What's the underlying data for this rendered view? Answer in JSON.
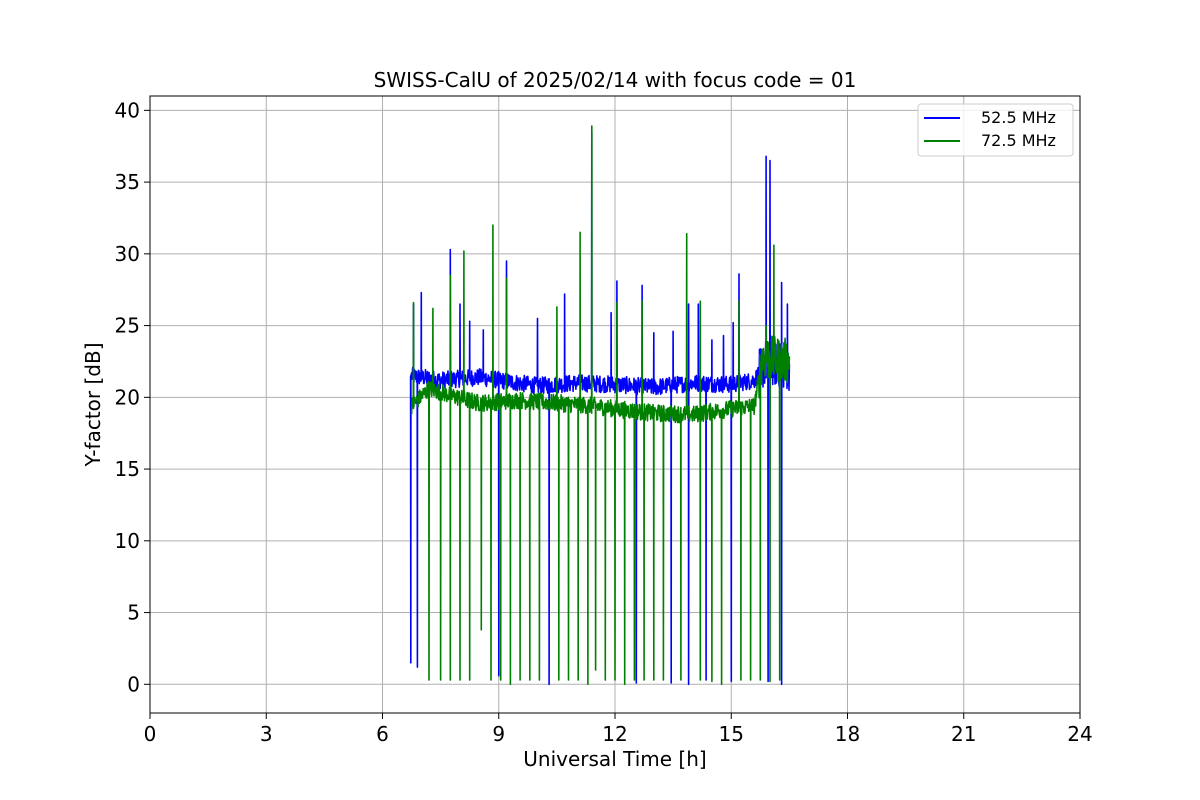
{
  "chart_data": {
    "type": "line",
    "title": "SWISS-CalU of 2025/02/14 with focus code = 01",
    "xlabel": "Universal Time [h]",
    "ylabel": "Y-factor [dB]",
    "xlim": [
      0,
      24
    ],
    "ylim": [
      -2,
      41
    ],
    "xticks": [
      0,
      3,
      6,
      9,
      12,
      15,
      18,
      21,
      24
    ],
    "yticks": [
      0,
      5,
      10,
      15,
      20,
      25,
      30,
      35,
      40
    ],
    "grid": true,
    "legend_position": "top-right",
    "series": [
      {
        "name": "52.5 MHz",
        "color": "#0000ff",
        "baseline": [
          [
            6.75,
            21.5
          ],
          [
            7.5,
            21.2
          ],
          [
            8.5,
            21.4
          ],
          [
            10.0,
            20.8
          ],
          [
            11.0,
            21.0
          ],
          [
            12.0,
            20.9
          ],
          [
            13.0,
            20.7
          ],
          [
            14.0,
            21.0
          ],
          [
            15.0,
            20.9
          ],
          [
            15.6,
            21.2
          ],
          [
            15.9,
            22.5
          ],
          [
            16.5,
            22.0
          ]
        ],
        "up_spikes": [
          [
            6.8,
            26.5
          ],
          [
            7.0,
            27.3
          ],
          [
            7.75,
            30.3
          ],
          [
            8.0,
            26.5
          ],
          [
            8.25,
            25.3
          ],
          [
            8.6,
            24.7
          ],
          [
            9.2,
            29.5
          ],
          [
            10.0,
            25.5
          ],
          [
            10.7,
            27.2
          ],
          [
            11.4,
            38.5
          ],
          [
            11.9,
            25.9
          ],
          [
            12.05,
            28.1
          ],
          [
            12.7,
            27.8
          ],
          [
            13.0,
            24.5
          ],
          [
            13.5,
            24.6
          ],
          [
            13.9,
            26.5
          ],
          [
            14.15,
            26.5
          ],
          [
            14.5,
            24.0
          ],
          [
            14.8,
            24.3
          ],
          [
            15.05,
            25.2
          ],
          [
            15.2,
            28.6
          ],
          [
            15.9,
            36.8
          ],
          [
            16.0,
            36.5
          ],
          [
            16.3,
            28.0
          ],
          [
            16.45,
            26.5
          ]
        ],
        "down_spikes": [
          [
            6.73,
            1.5
          ],
          [
            6.9,
            1.2
          ],
          [
            9.0,
            0.6
          ],
          [
            10.3,
            0.0
          ],
          [
            12.55,
            0.1
          ],
          [
            13.45,
            0.1
          ],
          [
            13.9,
            0.0
          ],
          [
            14.35,
            0.3
          ],
          [
            15.0,
            0.2
          ],
          [
            15.95,
            0.2
          ],
          [
            16.3,
            0.0
          ]
        ]
      },
      {
        "name": "72.5 MHz",
        "color": "#008000",
        "baseline": [
          [
            6.75,
            19.4
          ],
          [
            7.2,
            20.6
          ],
          [
            7.8,
            20.1
          ],
          [
            8.5,
            19.6
          ],
          [
            9.5,
            19.8
          ],
          [
            10.5,
            19.6
          ],
          [
            11.5,
            19.4
          ],
          [
            12.0,
            19.2
          ],
          [
            13.0,
            18.9
          ],
          [
            14.0,
            18.8
          ],
          [
            15.0,
            19.2
          ],
          [
            15.6,
            19.4
          ],
          [
            15.8,
            22.8
          ],
          [
            16.5,
            22.5
          ]
        ],
        "up_spikes": [
          [
            6.8,
            26.6
          ],
          [
            7.3,
            26.2
          ],
          [
            7.75,
            28.5
          ],
          [
            8.1,
            30.2
          ],
          [
            8.85,
            32.0
          ],
          [
            9.2,
            28.3
          ],
          [
            10.5,
            26.3
          ],
          [
            11.1,
            31.5
          ],
          [
            11.4,
            38.9
          ],
          [
            12.05,
            26.6
          ],
          [
            12.7,
            26.7
          ],
          [
            13.85,
            31.4
          ],
          [
            14.2,
            26.7
          ],
          [
            15.2,
            26.7
          ],
          [
            15.9,
            25.0
          ],
          [
            16.1,
            30.6
          ],
          [
            16.3,
            23.4
          ]
        ],
        "down_spikes": [
          [
            7.2,
            0.3
          ],
          [
            7.5,
            0.3
          ],
          [
            7.75,
            0.3
          ],
          [
            8.0,
            0.3
          ],
          [
            8.25,
            0.3
          ],
          [
            8.55,
            3.8
          ],
          [
            8.8,
            0.3
          ],
          [
            9.05,
            0.3
          ],
          [
            9.3,
            0.0
          ],
          [
            9.55,
            0.3
          ],
          [
            9.8,
            0.3
          ],
          [
            10.05,
            0.3
          ],
          [
            10.55,
            0.3
          ],
          [
            10.8,
            0.3
          ],
          [
            11.05,
            0.3
          ],
          [
            11.3,
            0.0
          ],
          [
            11.5,
            1.0
          ],
          [
            11.75,
            0.3
          ],
          [
            12.0,
            0.3
          ],
          [
            12.25,
            0.0
          ],
          [
            12.5,
            0.3
          ],
          [
            12.75,
            0.3
          ],
          [
            13.0,
            0.3
          ],
          [
            13.25,
            0.3
          ],
          [
            13.7,
            0.3
          ],
          [
            14.2,
            0.3
          ],
          [
            14.5,
            0.2
          ],
          [
            14.75,
            0.0
          ],
          [
            15.25,
            0.3
          ],
          [
            15.5,
            0.3
          ],
          [
            15.75,
            0.3
          ],
          [
            16.0,
            0.2
          ],
          [
            16.25,
            0.3
          ]
        ]
      }
    ]
  }
}
